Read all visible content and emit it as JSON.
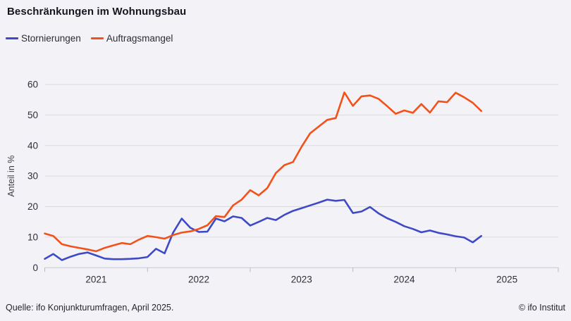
{
  "title": "Beschränkungen im Wohnungsbau",
  "legend": {
    "items": [
      {
        "label": "Stornierungen",
        "color": "#3e49c6"
      },
      {
        "label": "Auftragsmangel",
        "color": "#f4511a"
      }
    ]
  },
  "footer": {
    "source": "Quelle: ifo Konjunkturumfragen, April 2025.",
    "copyright": "© ifo Institut"
  },
  "colors": {
    "background": "#f3f3f7",
    "gridline": "#d9d9e0",
    "axis_line": "#c6c6d0",
    "tick_mark": "#b9b9c4",
    "axis_text": "#2e2e3a",
    "blue_series": "#3e49c6",
    "orange_series": "#f4511a"
  },
  "chart_data": {
    "type": "line",
    "title": "Beschränkungen im Wohnungsbau",
    "xlabel": "",
    "ylabel": "Anteil in %",
    "unit": "percent",
    "frequency": "monthly",
    "x_first": "2021-01",
    "x_last": "2025-04",
    "x_axis_domain": [
      "2021-01",
      "2026-01"
    ],
    "x_tick_labels": [
      "2021",
      "2022",
      "2023",
      "2024",
      "2025"
    ],
    "ylim": [
      0,
      64
    ],
    "yticks": [
      0,
      10,
      20,
      30,
      40,
      50,
      60
    ],
    "grid": "horizontal",
    "legend_position": "top-left",
    "series": [
      {
        "name": "Stornierungen",
        "color": "#3e49c6",
        "values": [
          2.9,
          4.5,
          2.5,
          3.6,
          4.5,
          5.0,
          4.0,
          3.0,
          2.8,
          2.8,
          2.9,
          3.1,
          3.5,
          6.2,
          4.7,
          11.5,
          16.1,
          13.1,
          11.7,
          11.8,
          16.1,
          15.2,
          16.8,
          16.3,
          13.8,
          15.0,
          16.3,
          15.6,
          17.3,
          18.6,
          19.5,
          20.4,
          21.3,
          22.3,
          21.9,
          22.2,
          17.9,
          18.4,
          19.9,
          17.8,
          16.2,
          15.0,
          13.6,
          12.7,
          11.6,
          12.2,
          11.4,
          10.9,
          10.3,
          9.9,
          8.3,
          10.4
        ]
      },
      {
        "name": "Auftragsmangel",
        "color": "#f4511a",
        "values": [
          11.2,
          10.4,
          7.7,
          7.0,
          6.5,
          6.0,
          5.4,
          6.5,
          7.3,
          8.1,
          7.7,
          9.2,
          10.4,
          10.0,
          9.5,
          10.7,
          11.5,
          11.9,
          12.7,
          13.9,
          16.9,
          16.6,
          20.4,
          22.3,
          25.4,
          23.7,
          26.1,
          31.0,
          33.6,
          34.6,
          39.6,
          44.0,
          46.2,
          48.4,
          49.0,
          57.4,
          53.0,
          56.1,
          56.4,
          55.3,
          52.9,
          50.4,
          51.5,
          50.7,
          53.6,
          50.8,
          54.5,
          54.2,
          57.3,
          55.8,
          54.0,
          51.3
        ]
      }
    ]
  }
}
